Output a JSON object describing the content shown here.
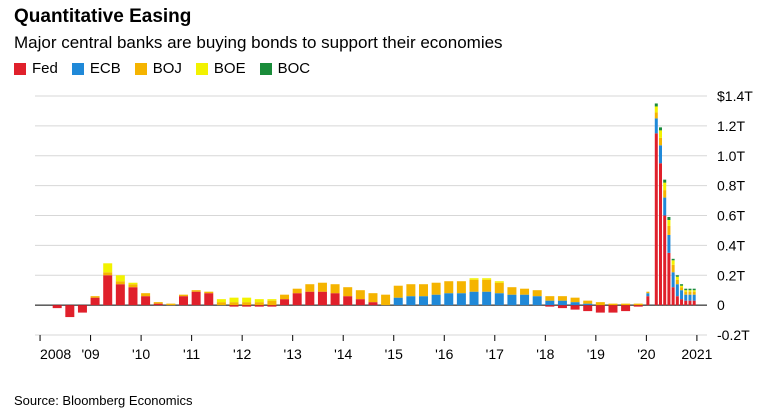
{
  "header": {
    "title": "Quantitative Easing",
    "subtitle": "Major central banks are buying bonds to support their economies"
  },
  "source": "Source: Bloomberg Economics",
  "chart_data": {
    "type": "bar",
    "stacked": true,
    "grid": true,
    "legend_position": "top-left",
    "ylim": [
      -0.2,
      1.4
    ],
    "y_ticks": [
      "$1.4T",
      "1.2T",
      "1.0T",
      "0.8T",
      "0.6T",
      "0.4T",
      "0.2T",
      "0",
      "-0.2T"
    ],
    "y_tick_values": [
      1.4,
      1.2,
      1.0,
      0.8,
      0.6,
      0.4,
      0.2,
      0,
      -0.2
    ],
    "x_ticks": [
      "2008",
      "'09",
      "'10",
      "'11",
      "'12",
      "'13",
      "'14",
      "'15",
      "'16",
      "'17",
      "'18",
      "'19",
      "'20",
      "2021"
    ],
    "x_tick_values": [
      2008,
      2009,
      2010,
      2011,
      2012,
      2013,
      2014,
      2015,
      2016,
      2017,
      2018,
      2019,
      2020,
      2021
    ],
    "series": [
      {
        "name": "Fed",
        "color": "#e0202b"
      },
      {
        "name": "ECB",
        "color": "#2089d8"
      },
      {
        "name": "BOJ",
        "color": "#f5b400"
      },
      {
        "name": "BOE",
        "color": "#f2f200"
      },
      {
        "name": "BOC",
        "color": "#1a8c3a"
      }
    ],
    "points": [
      {
        "x": "2008-01",
        "Fed": 0,
        "ECB": 0,
        "BOJ": 0,
        "BOE": 0,
        "BOC": 0
      },
      {
        "x": "2008-04",
        "Fed": -0.02,
        "ECB": 0,
        "BOJ": 0,
        "BOE": 0,
        "BOC": 0
      },
      {
        "x": "2008-07",
        "Fed": -0.08,
        "ECB": 0,
        "BOJ": 0,
        "BOE": 0,
        "BOC": 0
      },
      {
        "x": "2008-10",
        "Fed": -0.05,
        "ECB": 0,
        "BOJ": 0,
        "BOE": 0,
        "BOC": 0
      },
      {
        "x": "2009-01",
        "Fed": 0.05,
        "ECB": 0,
        "BOJ": 0.01,
        "BOE": 0,
        "BOC": 0
      },
      {
        "x": "2009-04",
        "Fed": 0.2,
        "ECB": 0,
        "BOJ": 0.02,
        "BOE": 0.06,
        "BOC": 0
      },
      {
        "x": "2009-07",
        "Fed": 0.14,
        "ECB": 0,
        "BOJ": 0.02,
        "BOE": 0.04,
        "BOC": 0
      },
      {
        "x": "2009-10",
        "Fed": 0.12,
        "ECB": 0,
        "BOJ": 0.02,
        "BOE": 0.01,
        "BOC": 0
      },
      {
        "x": "2010-01",
        "Fed": 0.06,
        "ECB": 0,
        "BOJ": 0.02,
        "BOE": 0,
        "BOC": 0
      },
      {
        "x": "2010-04",
        "Fed": 0.01,
        "ECB": 0,
        "BOJ": 0.01,
        "BOE": 0,
        "BOC": 0
      },
      {
        "x": "2010-07",
        "Fed": 0,
        "ECB": 0,
        "BOJ": 0.01,
        "BOE": 0,
        "BOC": 0
      },
      {
        "x": "2010-10",
        "Fed": 0.06,
        "ECB": 0,
        "BOJ": 0.01,
        "BOE": 0,
        "BOC": 0
      },
      {
        "x": "2011-01",
        "Fed": 0.09,
        "ECB": 0,
        "BOJ": 0.01,
        "BOE": 0,
        "BOC": 0
      },
      {
        "x": "2011-04",
        "Fed": 0.08,
        "ECB": 0,
        "BOJ": 0.01,
        "BOE": 0,
        "BOC": 0
      },
      {
        "x": "2011-07",
        "Fed": 0,
        "ECB": 0,
        "BOJ": 0.02,
        "BOE": 0.02,
        "BOC": 0
      },
      {
        "x": "2011-10",
        "Fed": -0.01,
        "ECB": 0,
        "BOJ": 0.02,
        "BOE": 0.03,
        "BOC": 0
      },
      {
        "x": "2012-01",
        "Fed": -0.01,
        "ECB": 0,
        "BOJ": 0.02,
        "BOE": 0.03,
        "BOC": 0
      },
      {
        "x": "2012-04",
        "Fed": -0.01,
        "ECB": 0,
        "BOJ": 0.02,
        "BOE": 0.02,
        "BOC": 0
      },
      {
        "x": "2012-07",
        "Fed": -0.01,
        "ECB": 0,
        "BOJ": 0.03,
        "BOE": 0.01,
        "BOC": 0
      },
      {
        "x": "2012-10",
        "Fed": 0.04,
        "ECB": 0,
        "BOJ": 0.03,
        "BOE": 0,
        "BOC": 0
      },
      {
        "x": "2013-01",
        "Fed": 0.08,
        "ECB": 0,
        "BOJ": 0.03,
        "BOE": 0,
        "BOC": 0
      },
      {
        "x": "2013-04",
        "Fed": 0.09,
        "ECB": 0,
        "BOJ": 0.05,
        "BOE": 0,
        "BOC": 0
      },
      {
        "x": "2013-07",
        "Fed": 0.09,
        "ECB": 0,
        "BOJ": 0.06,
        "BOE": 0,
        "BOC": 0
      },
      {
        "x": "2013-10",
        "Fed": 0.08,
        "ECB": 0,
        "BOJ": 0.06,
        "BOE": 0,
        "BOC": 0
      },
      {
        "x": "2014-01",
        "Fed": 0.06,
        "ECB": 0,
        "BOJ": 0.06,
        "BOE": 0,
        "BOC": 0
      },
      {
        "x": "2014-04",
        "Fed": 0.04,
        "ECB": 0,
        "BOJ": 0.06,
        "BOE": 0,
        "BOC": 0
      },
      {
        "x": "2014-07",
        "Fed": 0.02,
        "ECB": 0,
        "BOJ": 0.06,
        "BOE": 0,
        "BOC": 0
      },
      {
        "x": "2014-10",
        "Fed": 0,
        "ECB": 0,
        "BOJ": 0.07,
        "BOE": 0,
        "BOC": 0
      },
      {
        "x": "2015-01",
        "Fed": 0,
        "ECB": 0.05,
        "BOJ": 0.08,
        "BOE": 0,
        "BOC": 0
      },
      {
        "x": "2015-04",
        "Fed": 0,
        "ECB": 0.06,
        "BOJ": 0.08,
        "BOE": 0,
        "BOC": 0
      },
      {
        "x": "2015-07",
        "Fed": 0,
        "ECB": 0.06,
        "BOJ": 0.08,
        "BOE": 0,
        "BOC": 0
      },
      {
        "x": "2015-10",
        "Fed": 0,
        "ECB": 0.07,
        "BOJ": 0.08,
        "BOE": 0,
        "BOC": 0
      },
      {
        "x": "2016-01",
        "Fed": 0,
        "ECB": 0.08,
        "BOJ": 0.08,
        "BOE": 0,
        "BOC": 0
      },
      {
        "x": "2016-04",
        "Fed": 0,
        "ECB": 0.08,
        "BOJ": 0.08,
        "BOE": 0,
        "BOC": 0
      },
      {
        "x": "2016-07",
        "Fed": 0,
        "ECB": 0.09,
        "BOJ": 0.08,
        "BOE": 0.01,
        "BOC": 0
      },
      {
        "x": "2016-10",
        "Fed": 0,
        "ECB": 0.09,
        "BOJ": 0.08,
        "BOE": 0.01,
        "BOC": 0
      },
      {
        "x": "2017-01",
        "Fed": 0,
        "ECB": 0.08,
        "BOJ": 0.07,
        "BOE": 0.01,
        "BOC": 0
      },
      {
        "x": "2017-04",
        "Fed": 0,
        "ECB": 0.07,
        "BOJ": 0.05,
        "BOE": 0,
        "BOC": 0
      },
      {
        "x": "2017-07",
        "Fed": 0,
        "ECB": 0.07,
        "BOJ": 0.04,
        "BOE": 0,
        "BOC": 0
      },
      {
        "x": "2017-10",
        "Fed": 0,
        "ECB": 0.06,
        "BOJ": 0.04,
        "BOE": 0,
        "BOC": 0
      },
      {
        "x": "2018-01",
        "Fed": -0.01,
        "ECB": 0.03,
        "BOJ": 0.03,
        "BOE": 0,
        "BOC": 0
      },
      {
        "x": "2018-04",
        "Fed": -0.02,
        "ECB": 0.03,
        "BOJ": 0.03,
        "BOE": 0,
        "BOC": 0
      },
      {
        "x": "2018-07",
        "Fed": -0.03,
        "ECB": 0.02,
        "BOJ": 0.03,
        "BOE": 0,
        "BOC": 0
      },
      {
        "x": "2018-10",
        "Fed": -0.04,
        "ECB": 0.01,
        "BOJ": 0.02,
        "BOE": 0,
        "BOC": 0
      },
      {
        "x": "2019-01",
        "Fed": -0.05,
        "ECB": 0,
        "BOJ": 0.02,
        "BOE": 0,
        "BOC": 0
      },
      {
        "x": "2019-04",
        "Fed": -0.05,
        "ECB": 0,
        "BOJ": 0.01,
        "BOE": 0,
        "BOC": 0
      },
      {
        "x": "2019-07",
        "Fed": -0.04,
        "ECB": 0,
        "BOJ": 0.01,
        "BOE": 0,
        "BOC": 0
      },
      {
        "x": "2019-10",
        "Fed": -0.01,
        "ECB": 0,
        "BOJ": 0.01,
        "BOE": 0,
        "BOC": 0
      },
      {
        "x": "2020-01",
        "Fed": 0.06,
        "ECB": 0.02,
        "BOJ": 0.01,
        "BOE": 0,
        "BOC": 0
      },
      {
        "x": "2020-03",
        "Fed": 1.15,
        "ECB": 0.1,
        "BOJ": 0.04,
        "BOE": 0.04,
        "BOC": 0.02
      },
      {
        "x": "2020-04",
        "Fed": 0.95,
        "ECB": 0.12,
        "BOJ": 0.05,
        "BOE": 0.05,
        "BOC": 0.02
      },
      {
        "x": "2020-05",
        "Fed": 0.6,
        "ECB": 0.12,
        "BOJ": 0.05,
        "BOE": 0.05,
        "BOC": 0.02
      },
      {
        "x": "2020-06",
        "Fed": 0.35,
        "ECB": 0.12,
        "BOJ": 0.06,
        "BOE": 0.04,
        "BOC": 0.02
      },
      {
        "x": "2020-07",
        "Fed": 0.12,
        "ECB": 0.1,
        "BOJ": 0.05,
        "BOE": 0.03,
        "BOC": 0.01
      },
      {
        "x": "2020-08",
        "Fed": 0.06,
        "ECB": 0.08,
        "BOJ": 0.03,
        "BOE": 0.02,
        "BOC": 0.01
      },
      {
        "x": "2020-09",
        "Fed": 0.04,
        "ECB": 0.06,
        "BOJ": 0.02,
        "BOE": 0.01,
        "BOC": 0.01
      },
      {
        "x": "2020-10",
        "Fed": 0.03,
        "ECB": 0.04,
        "BOJ": 0.02,
        "BOE": 0.01,
        "BOC": 0.01
      },
      {
        "x": "2020-11",
        "Fed": 0.03,
        "ECB": 0.04,
        "BOJ": 0.02,
        "BOE": 0.01,
        "BOC": 0.01
      },
      {
        "x": "2020-12",
        "Fed": 0.03,
        "ECB": 0.04,
        "BOJ": 0.02,
        "BOE": 0.01,
        "BOC": 0.01
      }
    ]
  }
}
